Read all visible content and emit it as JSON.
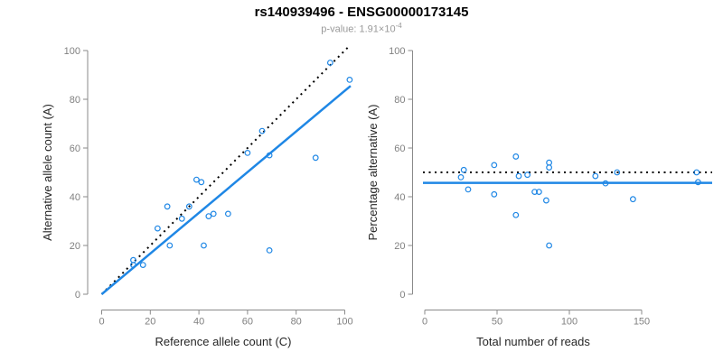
{
  "header": {
    "title": "rs140939496 - ENSG00000173145",
    "subtitle_prefix": "p-value: 1.91×10",
    "subtitle_exponent": "-4"
  },
  "colors": {
    "accent_blue": "#1f87e5",
    "identity_black": "#000000",
    "axis_line_gray": "#8a8a8a",
    "tick_label_gray": "#808080",
    "axis_label_dark": "#262626",
    "subtitle_gray": "#999999"
  },
  "chart_data": [
    {
      "type": "scatter",
      "name": "allele-counts",
      "xlabel": "Reference allele count (C)",
      "ylabel": "Alternative allele count (A)",
      "xlim": [
        0,
        102
      ],
      "ylim": [
        0,
        100
      ],
      "xticks": [
        0,
        20,
        40,
        60,
        80,
        100
      ],
      "yticks": [
        0,
        20,
        40,
        60,
        80,
        100
      ],
      "grid": false,
      "marker": "open-circle",
      "points": [
        [
          13,
          12
        ],
        [
          13,
          14
        ],
        [
          17,
          12
        ],
        [
          23,
          27
        ],
        [
          27,
          36
        ],
        [
          28,
          20
        ],
        [
          33,
          31
        ],
        [
          36,
          36
        ],
        [
          39,
          47
        ],
        [
          41,
          46
        ],
        [
          42,
          20
        ],
        [
          44,
          32
        ],
        [
          46,
          33
        ],
        [
          52,
          33
        ],
        [
          60,
          58
        ],
        [
          66,
          67
        ],
        [
          69,
          57
        ],
        [
          69,
          18
        ],
        [
          88,
          56
        ],
        [
          94,
          95
        ],
        [
          102,
          88
        ]
      ],
      "identity_line": {
        "style": "dotted",
        "from": [
          0,
          0
        ],
        "to": [
          101.5,
          101.5
        ]
      },
      "fit_line": {
        "style": "solid",
        "from": [
          0,
          0
        ],
        "to": [
          102.4,
          85.5
        ]
      }
    },
    {
      "type": "scatter",
      "name": "percentage-alternative",
      "xlabel": "Total number of reads",
      "ylabel": "Percentage alternative (A)",
      "xlim": [
        0,
        198
      ],
      "ylim": [
        0,
        100
      ],
      "xticks": [
        0,
        50,
        100,
        150
      ],
      "yticks": [
        0,
        20,
        40,
        60,
        80,
        100
      ],
      "grid": false,
      "marker": "open-circle",
      "points": [
        [
          25,
          48
        ],
        [
          27,
          51
        ],
        [
          30,
          43
        ],
        [
          48,
          53
        ],
        [
          48,
          41
        ],
        [
          63,
          56.5
        ],
        [
          63,
          32.5
        ],
        [
          65,
          48.5
        ],
        [
          71,
          49
        ],
        [
          76,
          42
        ],
        [
          79,
          42
        ],
        [
          84,
          38.5
        ],
        [
          86,
          54
        ],
        [
          86,
          52
        ],
        [
          86,
          20
        ],
        [
          118,
          48.5
        ],
        [
          125,
          45.5
        ],
        [
          133,
          50
        ],
        [
          144,
          39
        ],
        [
          188,
          50
        ],
        [
          189,
          46
        ]
      ],
      "reference_line": {
        "style": "dotted",
        "y": 50
      },
      "fit_line": {
        "style": "solid",
        "y": 45.7
      }
    }
  ]
}
